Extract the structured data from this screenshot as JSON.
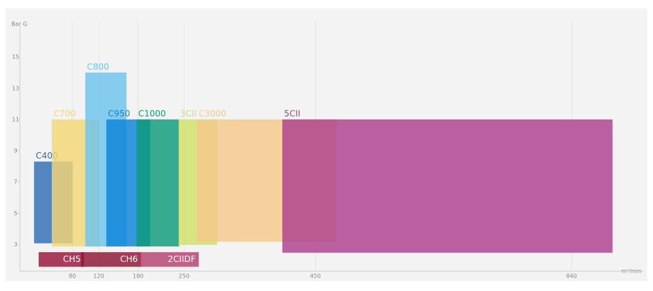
{
  "chart_data": {
    "type": "range",
    "y_label": "Bar G",
    "x_label": "m³/min",
    "xlim": [
      0,
      950
    ],
    "ylim": [
      1.3,
      17.3
    ],
    "xticks": [
      80,
      120,
      180,
      250,
      450,
      840
    ],
    "yticks": [
      3,
      5,
      7,
      9,
      11,
      13,
      15
    ],
    "grid": true,
    "series": [
      {
        "name": "C400",
        "color": "#2f6db3",
        "xrange": [
          22,
          80
        ],
        "yrange": [
          3.1,
          8.3
        ]
      },
      {
        "name": "C700",
        "color": "#f3d774",
        "xrange": [
          49,
          121
        ],
        "yrange": [
          2.9,
          11
        ]
      },
      {
        "name": "C800",
        "color": "#6cc3ee",
        "xrange": [
          100,
          162
        ],
        "yrange": [
          2.9,
          14
        ]
      },
      {
        "name": "C950",
        "color": "#0b84d9",
        "xrange": [
          132,
          198
        ],
        "yrange": [
          2.9,
          11
        ]
      },
      {
        "name": "C1000",
        "color": "#0e9b79",
        "xrange": [
          178,
          242
        ],
        "yrange": [
          2.9,
          11
        ]
      },
      {
        "name": "3CII",
        "color": "#cfe06a",
        "xrange": [
          242,
          300
        ],
        "yrange": [
          3,
          11
        ]
      },
      {
        "name": "C3000",
        "color": "#f4c98a",
        "xrange": [
          270,
          482
        ],
        "yrange": [
          3.2,
          11
        ]
      },
      {
        "name": "5CII",
        "color": "#ad408e",
        "xrange": [
          400,
          902
        ],
        "yrange": [
          2.5,
          11
        ]
      },
      {
        "name": "CH5",
        "color": "#98143a",
        "xrange": [
          29,
          97
        ],
        "yrange": [
          1.6,
          2.5
        ]
      },
      {
        "name": "CH6",
        "color": "#8e1535",
        "xrange": [
          94,
          184
        ],
        "yrange": [
          1.6,
          2.5
        ]
      },
      {
        "name": "2CIIDF",
        "color": "#b4426c",
        "xrange": [
          184,
          272
        ],
        "yrange": [
          1.6,
          2.5
        ]
      }
    ]
  }
}
